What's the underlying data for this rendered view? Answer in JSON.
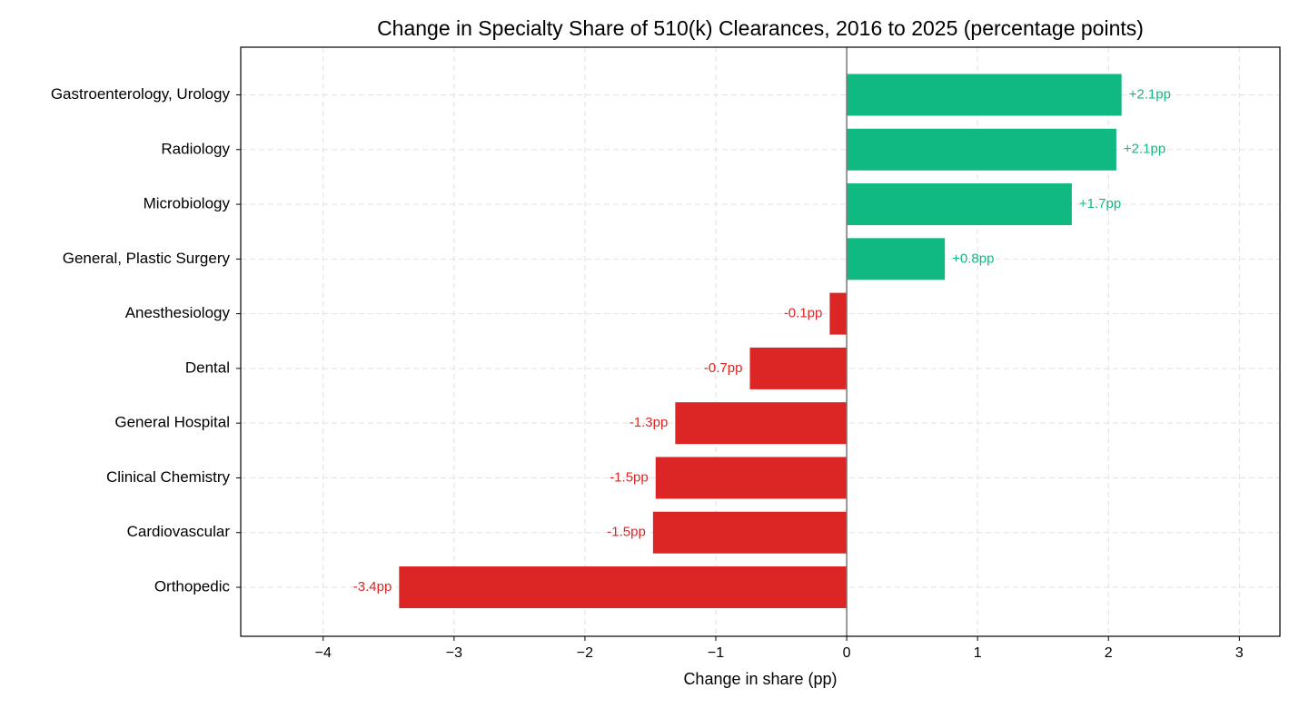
{
  "chart_data": {
    "type": "barh",
    "title": "Change in Specialty Share of 510(k) Clearances, 2016 to 2025 (percentage points)",
    "xlabel": "Change in share (pp)",
    "categories": [
      "Gastroenterology, Urology",
      "Radiology",
      "Microbiology",
      "General, Plastic Surgery",
      "Anesthesiology",
      "Dental",
      "General Hospital",
      "Clinical Chemistry",
      "Cardiovascular",
      "Orthopedic"
    ],
    "values": [
      2.1,
      2.06,
      1.72,
      0.75,
      -0.13,
      -0.74,
      -1.31,
      -1.46,
      -1.48,
      -3.42
    ],
    "value_labels": [
      "+2.1pp",
      "+2.1pp",
      "+1.7pp",
      "+0.8pp",
      "-0.1pp",
      "-0.7pp",
      "-1.3pp",
      "-1.5pp",
      "-1.5pp",
      "-3.4pp"
    ],
    "positive_color": "#10b981",
    "negative_color": "#dc2626",
    "xlim": [
      -4.63,
      3.31
    ],
    "xticks": [
      {
        "value": -4,
        "label": "−4"
      },
      {
        "value": -3,
        "label": "−3"
      },
      {
        "value": -2,
        "label": "−2"
      },
      {
        "value": -1,
        "label": "−1"
      },
      0,
      1,
      2,
      3
    ],
    "grid": true
  }
}
